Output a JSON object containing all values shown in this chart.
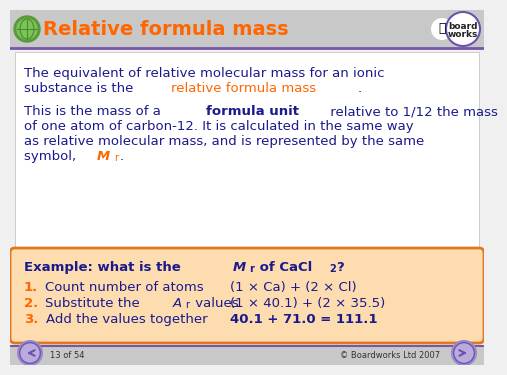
{
  "title": "Relative formula mass",
  "title_color": "#FF6600",
  "bg_color": "#F0F0F0",
  "header_bg": "#C8C8C8",
  "white_bg": "#FFFFFF",
  "box_bg": "#FDDCB0",
  "box_border": "#E07820",
  "text_color": "#1A1A8C",
  "dark_text": "#333333",
  "orange_color": "#FF6600",
  "purple_color": "#6655AA",
  "footer_line_color": "#7755AA",
  "para1_line1": "The equivalent of relative molecular mass for an ionic",
  "para1_line2a": "substance is the ",
  "para1_line2b": "relative formula mass",
  "para1_line2c": ".",
  "para2_line1a": "This is the mass of a ",
  "para2_line1b": "formula unit",
  "para2_line1c": " relative to 1/12 the mass",
  "para2_line2": "of one atom of carbon-12. It is calculated in the same way",
  "para2_line3": "as relative molecular mass, and is represented by the same",
  "para2_line4a": "symbol, ",
  "para2_line4b": "M",
  "para2_line4c": "r",
  "para2_line4d": ".",
  "ex_head_a": "Example: what is the ",
  "ex_head_b": "M",
  "ex_head_c": "r",
  "ex_head_d": " of CaCl",
  "ex_head_e": "2",
  "ex_head_f": "?",
  "step1a": "1.",
  "step1b": "Count number of atoms",
  "step1c": "(1 × Ca) + (2 × Cl)",
  "step2a": "2.",
  "step2b": "Substitute the ",
  "step2c": "A",
  "step2d": "r",
  "step2e": " values",
  "step2f": "(1 × 40.1) + (2 × 35.5)",
  "step3a": "3.",
  "step3b": "Add the values together",
  "step3c": "40.1 + 71.0 = 111.1",
  "footer_left": "13 of 54",
  "footer_right": "© Boardworks Ltd 2007",
  "nav_color": "#6655AA"
}
